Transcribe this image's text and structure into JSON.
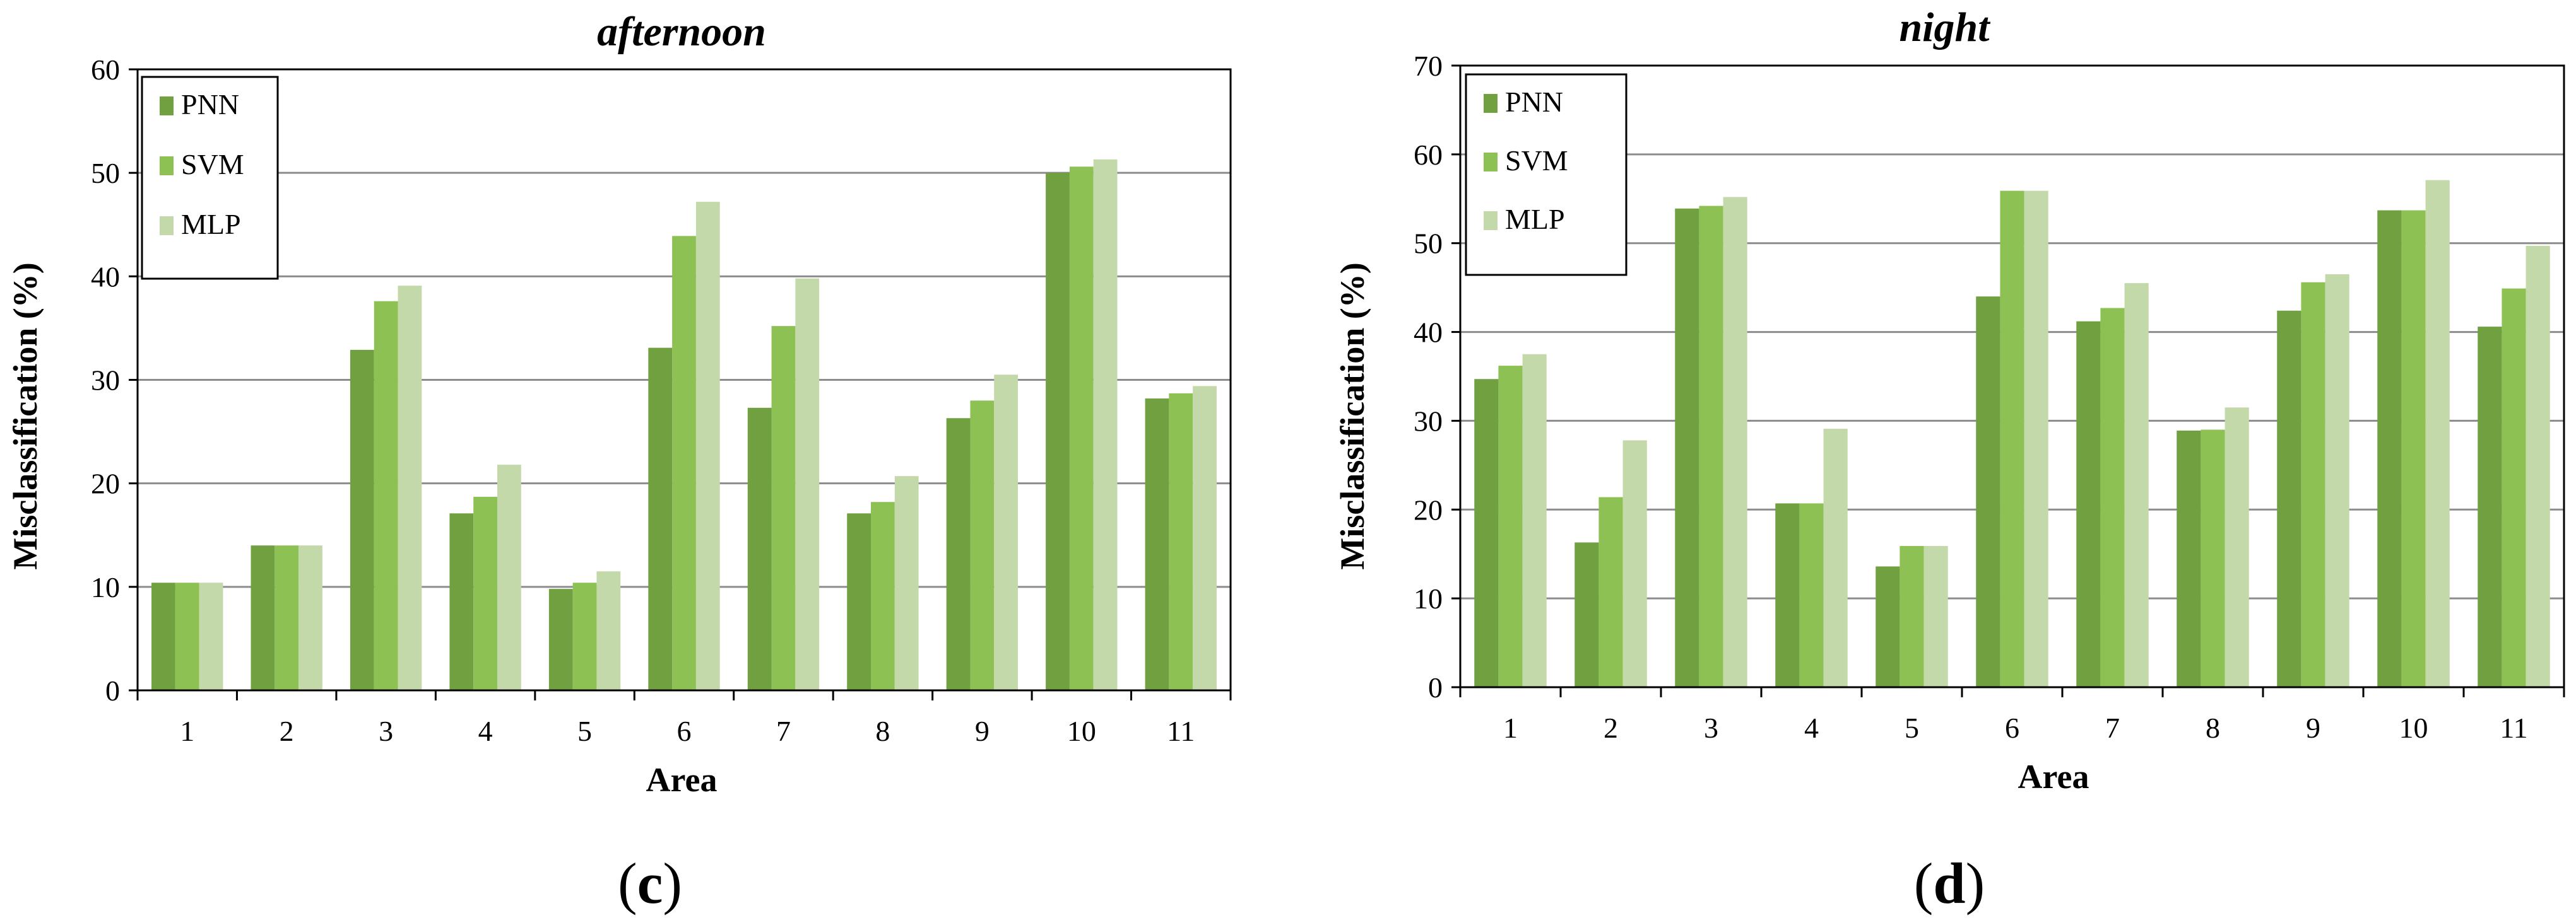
{
  "chart_data": [
    {
      "type": "bar",
      "title": "afternoon",
      "caption_open": "(",
      "caption_letter": "c",
      "caption_close": ")",
      "xlabel": "Area",
      "ylabel": "Misclassification  (%)",
      "categories": [
        "1",
        "2",
        "3",
        "4",
        "5",
        "6",
        "7",
        "8",
        "9",
        "10",
        "11"
      ],
      "ylim": [
        0,
        60
      ],
      "yticks": [
        0,
        10,
        20,
        30,
        40,
        50,
        60
      ],
      "grid": true,
      "legend_position": "top-left",
      "series": [
        {
          "name": "PNN",
          "color": "#70a03f",
          "values": [
            10.4,
            14.0,
            32.9,
            17.1,
            9.8,
            33.1,
            27.3,
            17.1,
            26.3,
            50.0,
            28.2
          ]
        },
        {
          "name": "SVM",
          "color": "#8dc154",
          "values": [
            10.4,
            14.0,
            37.6,
            18.7,
            10.4,
            43.9,
            35.2,
            18.2,
            28.0,
            50.6,
            28.7
          ]
        },
        {
          "name": "MLP",
          "color": "#c3d9a9",
          "values": [
            10.4,
            14.0,
            39.1,
            21.8,
            11.5,
            47.2,
            39.8,
            20.7,
            30.5,
            51.3,
            29.4
          ]
        }
      ]
    },
    {
      "type": "bar",
      "title": "night",
      "caption_open": "(",
      "caption_letter": "d",
      "caption_close": ")",
      "xlabel": "Area",
      "ylabel": "Misclassification  (%)",
      "categories": [
        "1",
        "2",
        "3",
        "4",
        "5",
        "6",
        "7",
        "8",
        "9",
        "10",
        "11"
      ],
      "ylim": [
        0,
        70
      ],
      "yticks": [
        0,
        10,
        20,
        30,
        40,
        50,
        60,
        70
      ],
      "grid": true,
      "legend_position": "top-left",
      "series": [
        {
          "name": "PNN",
          "color": "#70a03f",
          "values": [
            34.7,
            16.3,
            53.9,
            20.7,
            13.6,
            44.0,
            41.2,
            28.9,
            42.4,
            53.7,
            40.6
          ]
        },
        {
          "name": "SVM",
          "color": "#8dc154",
          "values": [
            36.2,
            21.4,
            54.2,
            20.7,
            15.9,
            55.9,
            42.7,
            29.0,
            45.6,
            53.7,
            44.9
          ]
        },
        {
          "name": "MLP",
          "color": "#c3d9a9",
          "values": [
            37.5,
            27.8,
            55.2,
            29.1,
            15.9,
            55.9,
            45.5,
            31.5,
            46.5,
            57.1,
            49.7
          ]
        }
      ]
    }
  ]
}
